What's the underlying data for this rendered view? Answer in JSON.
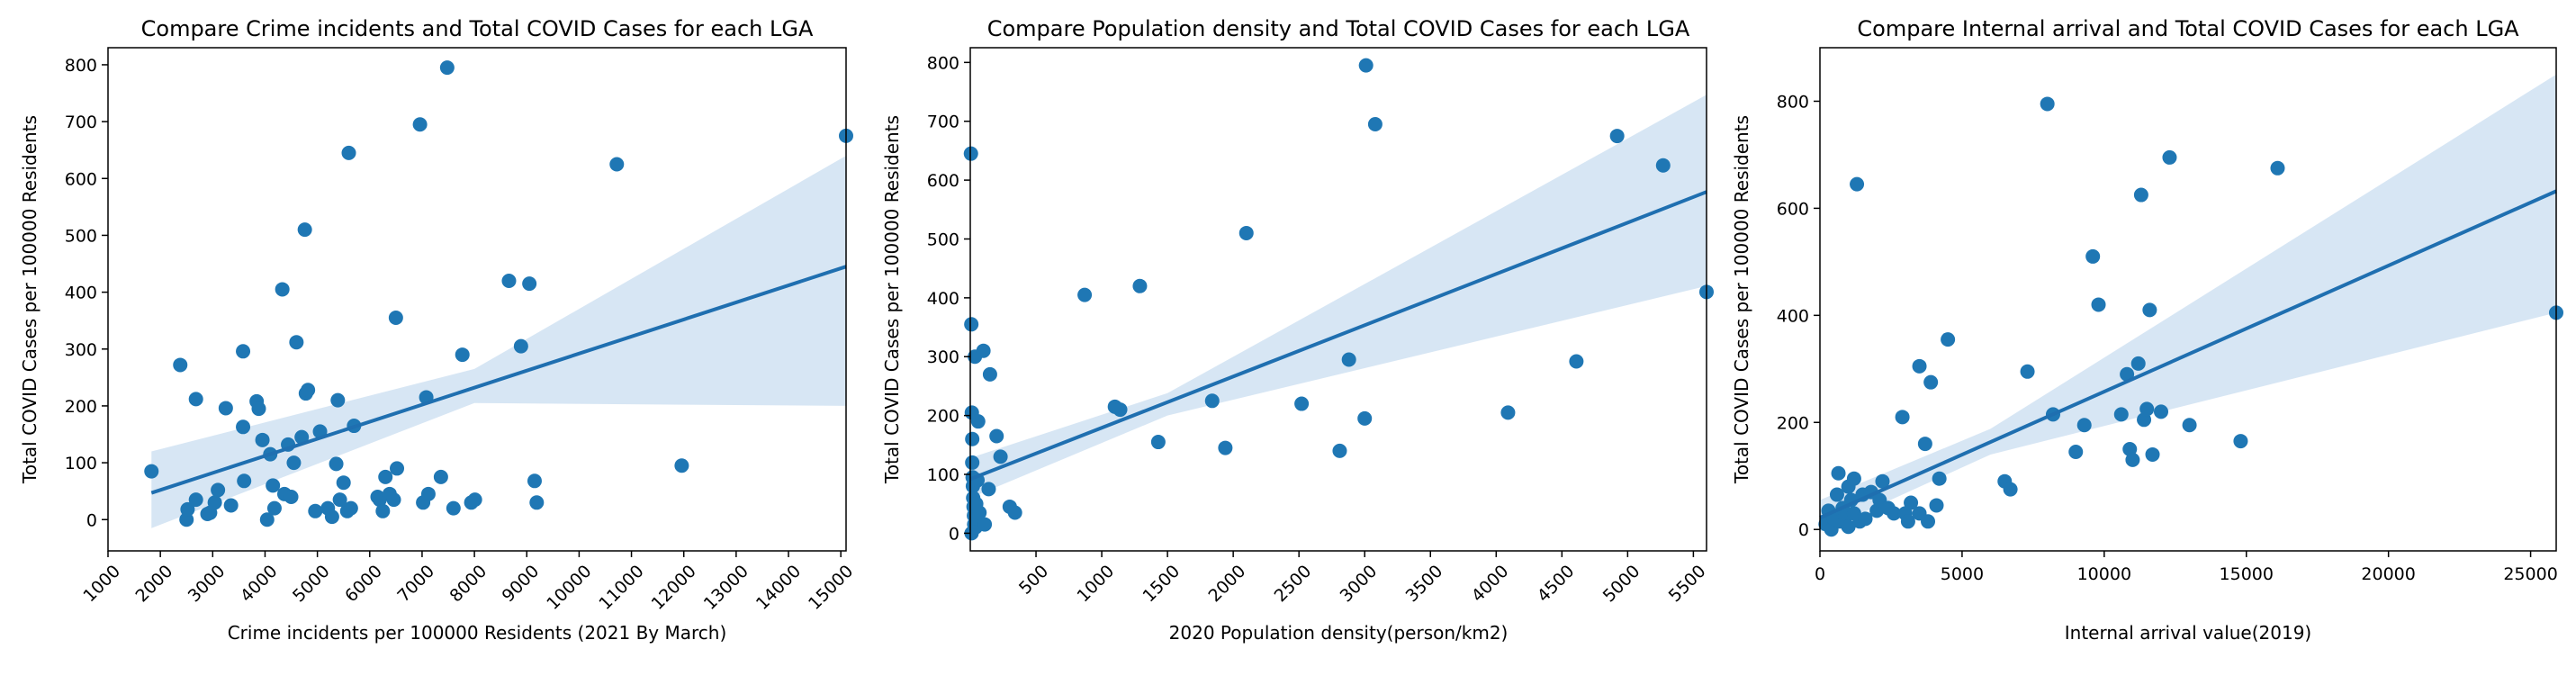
{
  "colors": {
    "point": "#1f77b4",
    "line": "#1f6fb0",
    "band": "#c6dbef",
    "axis": "#000000"
  },
  "chart_data": [
    {
      "type": "scatter",
      "title": "Compare Crime incidents and Total COVID Cases for each LGA",
      "xlabel": "Crime incidents per 100000 Residents (2021 By March)",
      "ylabel": "Total COVID Cases per 100000 Residents",
      "xlim": [
        1000,
        15100
      ],
      "ylim": [
        -55,
        830
      ],
      "xticks": [
        "1000",
        "2000",
        "3000",
        "4000",
        "5000",
        "6000",
        "7000",
        "8000",
        "9000",
        "10000",
        "11000",
        "12000",
        "13000",
        "14000",
        "15000"
      ],
      "yticks": [
        "0",
        "100",
        "200",
        "300",
        "400",
        "500",
        "600",
        "700",
        "800"
      ],
      "grid": false,
      "regression": {
        "x": [
          1830,
          15100
        ],
        "y": [
          47,
          445
        ],
        "ci_lower": [
          -15,
          200
        ],
        "ci_upper": [
          120,
          640
        ],
        "ci_mid": [
          1830,
          8000,
          15100
        ],
        "ci_mid_lower": [
          -15,
          205,
          200
        ],
        "ci_mid_upper": [
          120,
          265,
          640
        ]
      },
      "points": [
        [
          1830,
          85
        ],
        [
          2380,
          272
        ],
        [
          2500,
          0
        ],
        [
          2520,
          18
        ],
        [
          2680,
          212
        ],
        [
          2680,
          35
        ],
        [
          2900,
          10
        ],
        [
          2950,
          12
        ],
        [
          3040,
          30
        ],
        [
          3100,
          52
        ],
        [
          3250,
          196
        ],
        [
          3350,
          25
        ],
        [
          3580,
          296
        ],
        [
          3580,
          163
        ],
        [
          3600,
          68
        ],
        [
          3840,
          208
        ],
        [
          3880,
          195
        ],
        [
          3950,
          140
        ],
        [
          4040,
          0
        ],
        [
          4100,
          115
        ],
        [
          4150,
          60
        ],
        [
          4180,
          20
        ],
        [
          4330,
          405
        ],
        [
          4370,
          45
        ],
        [
          4440,
          132
        ],
        [
          4500,
          40
        ],
        [
          4550,
          100
        ],
        [
          4600,
          312
        ],
        [
          4700,
          145
        ],
        [
          4760,
          510
        ],
        [
          4780,
          222
        ],
        [
          4820,
          228
        ],
        [
          4960,
          15
        ],
        [
          5050,
          155
        ],
        [
          5200,
          20
        ],
        [
          5280,
          5
        ],
        [
          5360,
          98
        ],
        [
          5390,
          210
        ],
        [
          5430,
          35
        ],
        [
          5500,
          65
        ],
        [
          5570,
          15
        ],
        [
          5600,
          645
        ],
        [
          5640,
          20
        ],
        [
          5700,
          165
        ],
        [
          6150,
          40
        ],
        [
          6190,
          35
        ],
        [
          6250,
          15
        ],
        [
          6300,
          75
        ],
        [
          6380,
          45
        ],
        [
          6460,
          35
        ],
        [
          6500,
          355
        ],
        [
          6520,
          90
        ],
        [
          6960,
          695
        ],
        [
          7020,
          30
        ],
        [
          7080,
          215
        ],
        [
          7120,
          45
        ],
        [
          7360,
          75
        ],
        [
          7480,
          795
        ],
        [
          7600,
          20
        ],
        [
          7770,
          290
        ],
        [
          7940,
          30
        ],
        [
          8010,
          35
        ],
        [
          8660,
          420
        ],
        [
          8890,
          305
        ],
        [
          9050,
          415
        ],
        [
          9150,
          68
        ],
        [
          9190,
          30
        ],
        [
          10720,
          625
        ],
        [
          11960,
          95
        ],
        [
          15100,
          675
        ]
      ]
    },
    {
      "type": "scatter",
      "title": "Compare Population density and Total COVID Cases for each LGA",
      "xlabel": "2020 Population density(person/km2)",
      "ylabel": "Total COVID Cases per 100000 Residents",
      "xlim": [
        0,
        5600
      ],
      "ylim": [
        -30,
        825
      ],
      "xticks": [
        "500",
        "1000",
        "1500",
        "2000",
        "2500",
        "3000",
        "3500",
        "4000",
        "4500",
        "5000",
        "5500"
      ],
      "yticks": [
        "0",
        "100",
        "200",
        "300",
        "400",
        "500",
        "600",
        "700",
        "800"
      ],
      "grid": false,
      "regression": {
        "x": [
          0,
          5600
        ],
        "y": [
          92,
          580
        ],
        "ci_lower": [
          60,
          420
        ],
        "ci_upper": [
          128,
          745
        ],
        "ci_mid": [
          0,
          1500,
          5600
        ],
        "ci_mid_lower": [
          60,
          200,
          420
        ],
        "ci_mid_upper": [
          128,
          238,
          745
        ]
      },
      "points": [
        [
          5,
          645
        ],
        [
          8,
          355
        ],
        [
          10,
          0
        ],
        [
          12,
          205
        ],
        [
          15,
          160
        ],
        [
          15,
          120
        ],
        [
          18,
          95
        ],
        [
          20,
          80
        ],
        [
          22,
          60
        ],
        [
          25,
          45
        ],
        [
          28,
          30
        ],
        [
          30,
          15
        ],
        [
          35,
          300
        ],
        [
          40,
          10
        ],
        [
          45,
          50
        ],
        [
          50,
          25
        ],
        [
          55,
          90
        ],
        [
          60,
          190
        ],
        [
          70,
          35
        ],
        [
          100,
          310
        ],
        [
          110,
          15
        ],
        [
          140,
          75
        ],
        [
          150,
          270
        ],
        [
          200,
          165
        ],
        [
          230,
          130
        ],
        [
          300,
          45
        ],
        [
          340,
          35
        ],
        [
          870,
          405
        ],
        [
          1100,
          215
        ],
        [
          1140,
          210
        ],
        [
          1290,
          420
        ],
        [
          1430,
          155
        ],
        [
          1840,
          225
        ],
        [
          1940,
          145
        ],
        [
          2100,
          510
        ],
        [
          2520,
          220
        ],
        [
          2810,
          140
        ],
        [
          2880,
          295
        ],
        [
          3000,
          195
        ],
        [
          3010,
          795
        ],
        [
          3080,
          695
        ],
        [
          4090,
          205
        ],
        [
          4610,
          292
        ],
        [
          4920,
          675
        ],
        [
          5270,
          625
        ],
        [
          5600,
          410
        ]
      ]
    },
    {
      "type": "scatter",
      "title": "Compare Internal arrival and Total COVID Cases for each LGA",
      "xlabel": "Internal arrival value(2019)",
      "ylabel": "Total COVID Cases per 100000 Residents",
      "xlim": [
        0,
        25900
      ],
      "ylim": [
        -40,
        900
      ],
      "xticks": [
        "0",
        "5000",
        "10000",
        "15000",
        "20000",
        "25000"
      ],
      "yticks": [
        "0",
        "200",
        "400",
        "600",
        "800"
      ],
      "grid": false,
      "regression": {
        "x": [
          0,
          25900
        ],
        "y": [
          22,
          632
        ],
        "ci_lower": [
          -5,
          405
        ],
        "ci_upper": [
          55,
          850
        ],
        "ci_mid": [
          0,
          6000,
          25900
        ],
        "ci_mid_lower": [
          -5,
          140,
          405
        ],
        "ci_mid_upper": [
          55,
          188,
          850
        ]
      },
      "points": [
        [
          200,
          10
        ],
        [
          300,
          35
        ],
        [
          400,
          0
        ],
        [
          500,
          20
        ],
        [
          600,
          65
        ],
        [
          650,
          105
        ],
        [
          700,
          15
        ],
        [
          800,
          40
        ],
        [
          900,
          25
        ],
        [
          1000,
          5
        ],
        [
          1000,
          80
        ],
        [
          1100,
          55
        ],
        [
          1200,
          95
        ],
        [
          1200,
          30
        ],
        [
          1300,
          645
        ],
        [
          1400,
          15
        ],
        [
          1500,
          65
        ],
        [
          1600,
          20
        ],
        [
          1800,
          70
        ],
        [
          2000,
          35
        ],
        [
          2100,
          55
        ],
        [
          2200,
          90
        ],
        [
          2400,
          40
        ],
        [
          2600,
          30
        ],
        [
          2900,
          210
        ],
        [
          3000,
          30
        ],
        [
          3100,
          15
        ],
        [
          3200,
          50
        ],
        [
          3500,
          30
        ],
        [
          3500,
          305
        ],
        [
          3700,
          160
        ],
        [
          3800,
          15
        ],
        [
          3900,
          275
        ],
        [
          4100,
          45
        ],
        [
          4200,
          95
        ],
        [
          4500,
          355
        ],
        [
          6500,
          90
        ],
        [
          6700,
          75
        ],
        [
          7300,
          295
        ],
        [
          8000,
          795
        ],
        [
          8200,
          215
        ],
        [
          9000,
          145
        ],
        [
          9300,
          195
        ],
        [
          9600,
          510
        ],
        [
          9800,
          420
        ],
        [
          10600,
          215
        ],
        [
          10800,
          290
        ],
        [
          10900,
          150
        ],
        [
          11000,
          130
        ],
        [
          11200,
          310
        ],
        [
          11300,
          625
        ],
        [
          11400,
          205
        ],
        [
          11500,
          225
        ],
        [
          11600,
          410
        ],
        [
          11700,
          140
        ],
        [
          12000,
          220
        ],
        [
          12300,
          695
        ],
        [
          13000,
          195
        ],
        [
          14800,
          165
        ],
        [
          16100,
          675
        ],
        [
          25900,
          405
        ]
      ]
    }
  ]
}
